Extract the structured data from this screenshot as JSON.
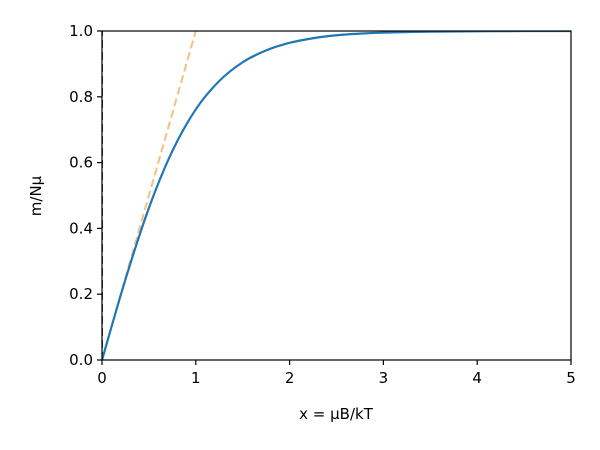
{
  "chart_data": {
    "type": "line",
    "title": "",
    "xlabel": "x = μB/kT",
    "ylabel": "m/Nμ",
    "xlim": [
      0,
      5
    ],
    "ylim": [
      0.0,
      1.0
    ],
    "grid": false,
    "legend": "none",
    "xticks": [
      0,
      1,
      2,
      3,
      4,
      5
    ],
    "xtick_labels": [
      "0",
      "1",
      "2",
      "3",
      "4",
      "5"
    ],
    "yticks": [
      0.0,
      0.2,
      0.4,
      0.6,
      0.8,
      1.0
    ],
    "ytick_labels": [
      "0.0",
      "0.2",
      "0.4",
      "0.6",
      "0.8",
      "1.0"
    ],
    "series": [
      {
        "style": "solid",
        "color": "#1f77b4",
        "x": [
          0,
          0.25,
          0.5,
          0.75,
          1.0,
          1.25,
          1.5,
          1.75,
          2.0,
          2.25,
          2.5,
          2.75,
          3.0,
          3.5,
          4.0,
          4.5,
          5.0
        ],
        "y": [
          0,
          0.245,
          0.462,
          0.635,
          0.762,
          0.848,
          0.905,
          0.941,
          0.964,
          0.978,
          0.987,
          0.992,
          0.995,
          0.998,
          0.999,
          1.0,
          1.0
        ]
      },
      {
        "style": "dashed",
        "color": "#f5bf86",
        "x": [
          0,
          1.0
        ],
        "y": [
          0,
          1.0
        ]
      },
      {
        "style": "dashed",
        "color": "#444444",
        "x": [
          0,
          0
        ],
        "y": [
          0,
          1.0
        ]
      }
    ]
  }
}
